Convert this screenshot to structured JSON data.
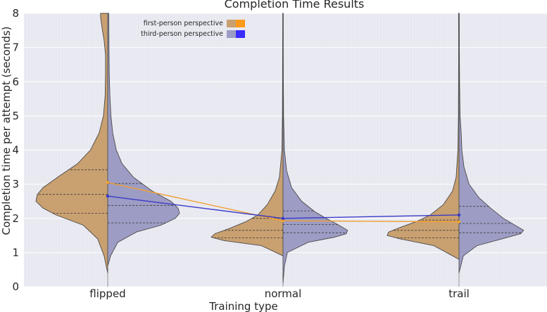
{
  "chart_data": {
    "type": "violin",
    "title": "Completion Time Results",
    "xlabel": "Training type",
    "ylabel": "Completion time per attempt (seconds)",
    "ylim": [
      0,
      8
    ],
    "yticks": [
      0,
      1,
      2,
      3,
      4,
      5,
      6,
      7,
      8
    ],
    "categories": [
      "flipped",
      "normal",
      "trail"
    ],
    "legend": {
      "position": "top-left",
      "entries": [
        {
          "label": "first-person perspective",
          "color": "#ff9a1a",
          "fill": "#c9a070"
        },
        {
          "label": "third-person perspective",
          "color": "#3a2cff",
          "fill": "#9d9cc4"
        }
      ]
    },
    "series": [
      {
        "name": "first-person perspective",
        "side": "left",
        "fill_color": "#c9a070",
        "line_color": "#f0a030",
        "means": [
          3.05,
          1.93,
          1.9
        ],
        "quartiles": [
          [
            2.15,
            2.7,
            3.42
          ],
          [
            1.43,
            1.65,
            2.0
          ],
          [
            1.43,
            1.65,
            1.95
          ]
        ],
        "density": [
          [
            [
              0.4,
              0
            ],
            [
              0.9,
              0.05
            ],
            [
              1.4,
              0.14
            ],
            [
              1.8,
              0.34
            ],
            [
              2.1,
              0.72
            ],
            [
              2.3,
              0.9
            ],
            [
              2.5,
              1.0
            ],
            [
              2.7,
              0.98
            ],
            [
              2.9,
              0.9
            ],
            [
              3.2,
              0.7
            ],
            [
              3.6,
              0.42
            ],
            [
              4.0,
              0.24
            ],
            [
              4.5,
              0.12
            ],
            [
              5.0,
              0.06
            ],
            [
              5.6,
              0.035
            ],
            [
              6.2,
              0.03
            ],
            [
              6.8,
              0.03
            ],
            [
              7.2,
              0.05
            ],
            [
              7.6,
              0.08
            ],
            [
              7.9,
              0.1
            ],
            [
              8.0,
              0.1
            ]
          ],
          [
            [
              0.9,
              0
            ],
            [
              1.2,
              0.3
            ],
            [
              1.35,
              0.82
            ],
            [
              1.45,
              1.0
            ],
            [
              1.55,
              0.95
            ],
            [
              1.7,
              0.75
            ],
            [
              1.9,
              0.52
            ],
            [
              2.1,
              0.35
            ],
            [
              2.4,
              0.22
            ],
            [
              2.8,
              0.11
            ],
            [
              3.2,
              0.05
            ],
            [
              4.0,
              0.015
            ],
            [
              5.0,
              0.008
            ],
            [
              6.0,
              0.006
            ],
            [
              7.0,
              0.005
            ],
            [
              7.8,
              0.004
            ],
            [
              8.0,
              0.004
            ]
          ],
          [
            [
              0.8,
              0
            ],
            [
              1.2,
              0.35
            ],
            [
              1.4,
              0.82
            ],
            [
              1.5,
              1.0
            ],
            [
              1.6,
              0.98
            ],
            [
              1.75,
              0.8
            ],
            [
              1.9,
              0.6
            ],
            [
              2.1,
              0.4
            ],
            [
              2.4,
              0.22
            ],
            [
              2.8,
              0.09
            ],
            [
              3.2,
              0.04
            ],
            [
              4.0,
              0.015
            ],
            [
              5.0,
              0.008
            ],
            [
              6.0,
              0.006
            ],
            [
              7.0,
              0.005
            ],
            [
              7.8,
              0.006
            ],
            [
              8.0,
              0.006
            ]
          ]
        ]
      },
      {
        "name": "third-person perspective",
        "side": "right",
        "fill_color": "#9d9cc4",
        "line_color": "#3a3ac8",
        "means": [
          2.65,
          2.0,
          2.1
        ],
        "quartiles": [
          [
            1.87,
            2.38,
            3.02
          ],
          [
            1.58,
            1.82,
            2.22
          ],
          [
            1.58,
            1.85,
            2.35
          ]
        ],
        "density": [
          [
            [
              0.6,
              0
            ],
            [
              0.9,
              0.04
            ],
            [
              1.3,
              0.14
            ],
            [
              1.6,
              0.4
            ],
            [
              1.8,
              0.74
            ],
            [
              2.0,
              0.94
            ],
            [
              2.15,
              1.0
            ],
            [
              2.3,
              0.98
            ],
            [
              2.5,
              0.88
            ],
            [
              2.8,
              0.62
            ],
            [
              3.2,
              0.36
            ],
            [
              3.6,
              0.2
            ],
            [
              4.0,
              0.12
            ],
            [
              4.5,
              0.07
            ],
            [
              5.0,
              0.045
            ],
            [
              5.6,
              0.03
            ],
            [
              6.2,
              0.022
            ],
            [
              7.0,
              0.018
            ],
            [
              8.0,
              0.015
            ]
          ],
          [
            [
              0.1,
              0
            ],
            [
              0.6,
              0.02
            ],
            [
              1.0,
              0.06
            ],
            [
              1.3,
              0.35
            ],
            [
              1.45,
              0.72
            ],
            [
              1.55,
              0.88
            ],
            [
              1.65,
              0.9
            ],
            [
              1.8,
              0.78
            ],
            [
              2.0,
              0.6
            ],
            [
              2.2,
              0.44
            ],
            [
              2.5,
              0.26
            ],
            [
              2.9,
              0.12
            ],
            [
              3.4,
              0.05
            ],
            [
              4.0,
              0.02
            ],
            [
              5.0,
              0.008
            ],
            [
              6.0,
              0.005
            ],
            [
              7.0,
              0.004
            ],
            [
              8.0,
              0.004
            ]
          ],
          [
            [
              0.4,
              0
            ],
            [
              0.9,
              0.06
            ],
            [
              1.2,
              0.25
            ],
            [
              1.4,
              0.6
            ],
            [
              1.55,
              0.86
            ],
            [
              1.65,
              0.9
            ],
            [
              1.8,
              0.78
            ],
            [
              2.0,
              0.62
            ],
            [
              2.3,
              0.44
            ],
            [
              2.6,
              0.28
            ],
            [
              3.0,
              0.14
            ],
            [
              3.5,
              0.07
            ],
            [
              4.0,
              0.04
            ],
            [
              4.5,
              0.03
            ],
            [
              5.0,
              0.015
            ],
            [
              6.0,
              0.008
            ],
            [
              7.0,
              0.005
            ],
            [
              8.0,
              0.004
            ]
          ]
        ]
      }
    ]
  }
}
